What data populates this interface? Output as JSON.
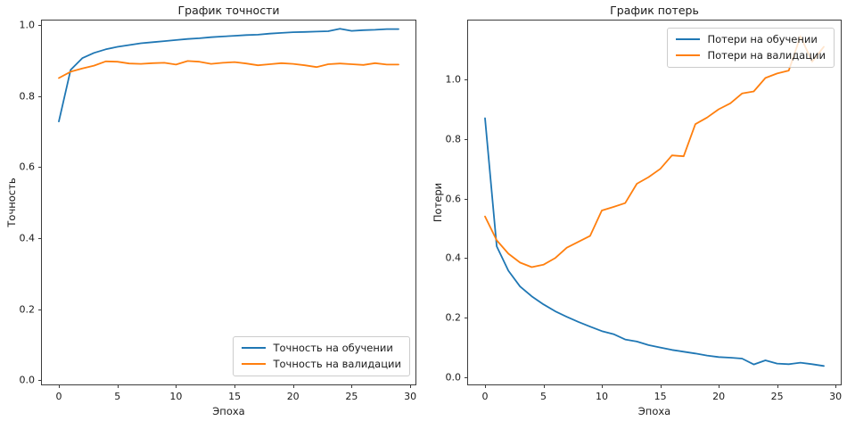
{
  "figure": {
    "background": "#ffffff",
    "text_color": "#1a1a1a",
    "spine_color": "#3c3c3c"
  },
  "chart_data": [
    {
      "type": "line",
      "title": "График точности",
      "xlabel": "Эпоха",
      "ylabel": "Точность",
      "grid": false,
      "legend_position": "bottom-right",
      "xlim": [
        -1.45,
        30.45
      ],
      "ylim": [
        -0.012,
        1.012
      ],
      "xticks": [
        0,
        5,
        10,
        15,
        20,
        25,
        30
      ],
      "xtick_labels": [
        "0",
        "5",
        "10",
        "15",
        "20",
        "25",
        "30"
      ],
      "yticks": [
        0.0,
        0.2,
        0.4,
        0.6,
        0.8,
        1.0
      ],
      "ytick_labels": [
        "0.0",
        "0.2",
        "0.4",
        "0.6",
        "0.8",
        "1.0"
      ],
      "x": [
        0,
        1,
        2,
        3,
        4,
        5,
        6,
        7,
        8,
        9,
        10,
        11,
        12,
        13,
        14,
        15,
        16,
        17,
        18,
        19,
        20,
        21,
        22,
        23,
        24,
        25,
        26,
        27,
        28,
        29
      ],
      "series": [
        {
          "id": "training-accuracy",
          "name": "Точность на обучении",
          "color": "#1f77b4",
          "values": [
            0.728,
            0.873,
            0.906,
            0.921,
            0.931,
            0.938,
            0.943,
            0.948,
            0.951,
            0.954,
            0.957,
            0.96,
            0.962,
            0.965,
            0.967,
            0.969,
            0.971,
            0.972,
            0.975,
            0.977,
            0.979,
            0.98,
            0.981,
            0.982,
            0.989,
            0.983,
            0.985,
            0.986,
            0.988,
            0.988
          ]
        },
        {
          "id": "validation-accuracy",
          "name": "Точность на валидации",
          "color": "#ff7f0e",
          "values": [
            0.85,
            0.868,
            0.877,
            0.885,
            0.897,
            0.896,
            0.891,
            0.89,
            0.892,
            0.893,
            0.888,
            0.898,
            0.896,
            0.89,
            0.893,
            0.895,
            0.891,
            0.886,
            0.889,
            0.892,
            0.89,
            0.886,
            0.881,
            0.889,
            0.891,
            0.889,
            0.887,
            0.892,
            0.888,
            0.888
          ]
        }
      ]
    },
    {
      "type": "line",
      "title": "График потерь",
      "xlabel": "Эпоха",
      "ylabel": "Потери",
      "grid": false,
      "legend_position": "top-right",
      "xlim": [
        -1.45,
        30.45
      ],
      "ylim": [
        -0.024,
        1.198
      ],
      "xticks": [
        0,
        5,
        10,
        15,
        20,
        25,
        30
      ],
      "xtick_labels": [
        "0",
        "5",
        "10",
        "15",
        "20",
        "25",
        "30"
      ],
      "yticks": [
        0.0,
        0.2,
        0.4,
        0.6,
        0.8,
        1.0
      ],
      "ytick_labels": [
        "0.0",
        "0.2",
        "0.4",
        "0.6",
        "0.8",
        "1.0"
      ],
      "x": [
        0,
        1,
        2,
        3,
        4,
        5,
        6,
        7,
        8,
        9,
        10,
        11,
        12,
        13,
        14,
        15,
        16,
        17,
        18,
        19,
        20,
        21,
        22,
        23,
        24,
        25,
        26,
        27,
        28,
        29
      ],
      "series": [
        {
          "id": "training-loss",
          "name": "Потери на обучении",
          "color": "#1f77b4",
          "values": [
            0.87,
            0.44,
            0.358,
            0.305,
            0.272,
            0.245,
            0.222,
            0.203,
            0.186,
            0.17,
            0.155,
            0.145,
            0.127,
            0.12,
            0.108,
            0.1,
            0.092,
            0.086,
            0.08,
            0.073,
            0.068,
            0.066,
            0.063,
            0.043,
            0.057,
            0.046,
            0.044,
            0.049,
            0.044,
            0.038
          ]
        },
        {
          "id": "validation-loss",
          "name": "Потери на валидации",
          "color": "#ff7f0e",
          "values": [
            0.54,
            0.46,
            0.415,
            0.385,
            0.37,
            0.378,
            0.4,
            0.435,
            0.455,
            0.475,
            0.56,
            0.572,
            0.585,
            0.65,
            0.672,
            0.7,
            0.745,
            0.742,
            0.85,
            0.872,
            0.9,
            0.92,
            0.953,
            0.96,
            1.005,
            1.02,
            1.03,
            1.145,
            1.06,
            1.11
          ]
        }
      ]
    }
  ]
}
